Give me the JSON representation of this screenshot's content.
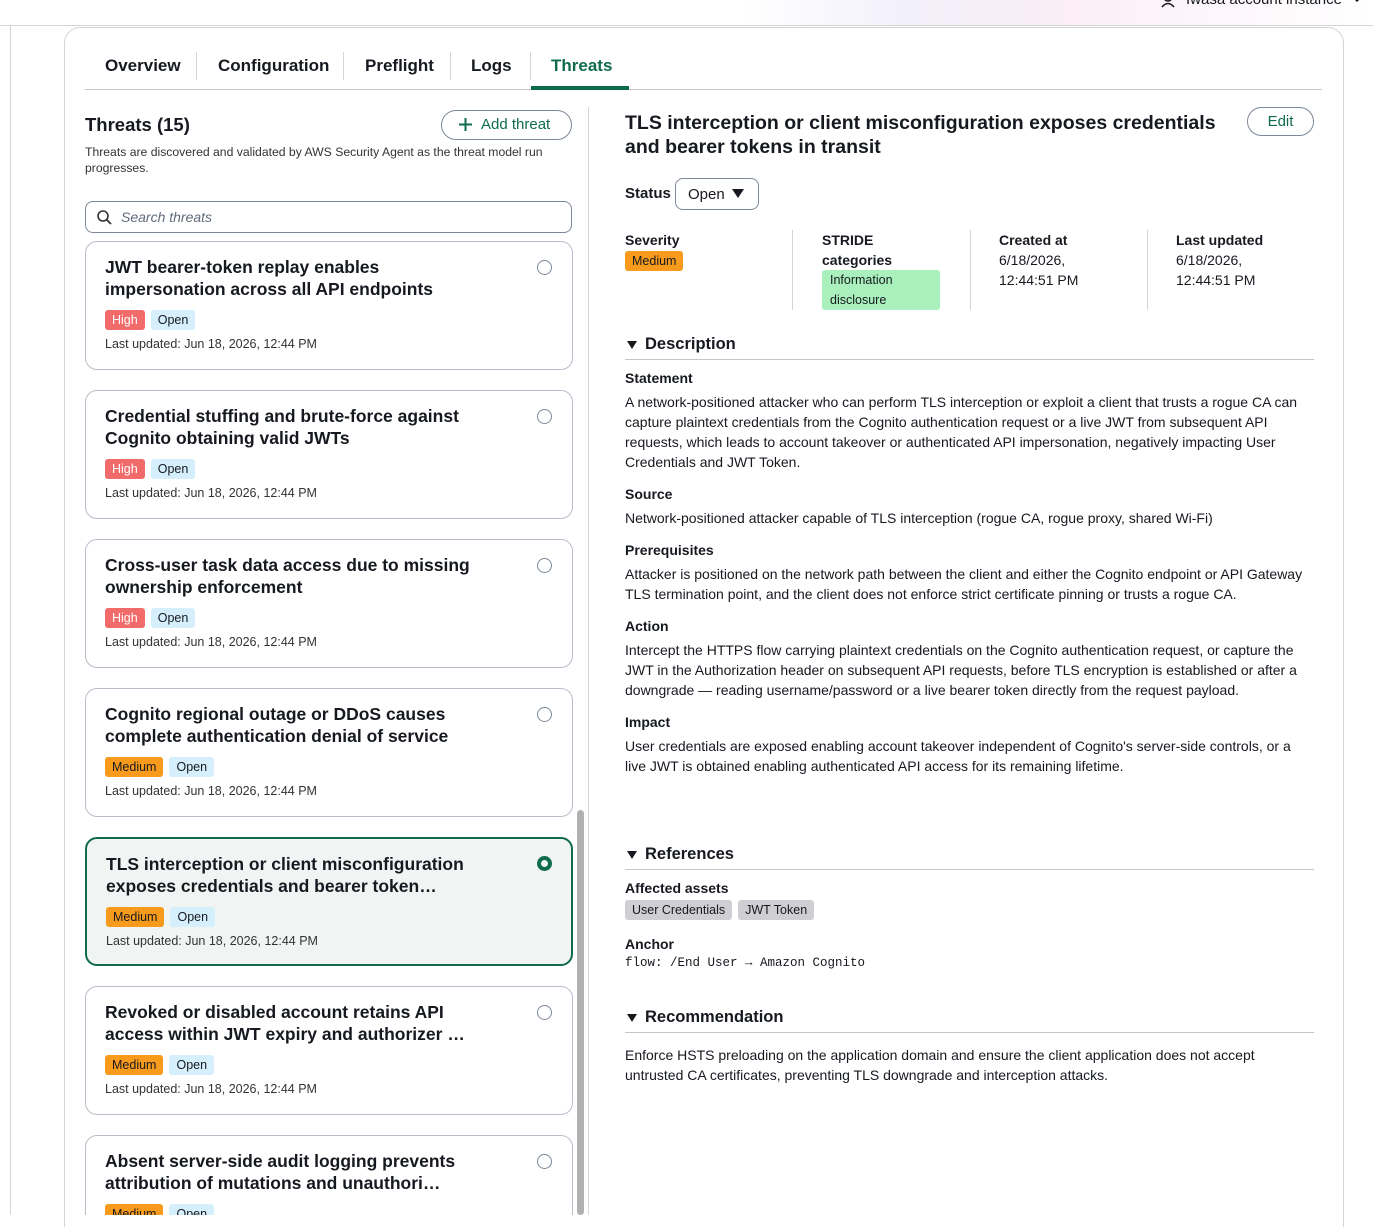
{
  "top_bar": {
    "account": "Iwasa account instance"
  },
  "tabs": [
    "Overview",
    "Configuration",
    "Preflight",
    "Logs",
    "Threats"
  ],
  "threats_panel": {
    "title": "Threats (15)",
    "add_button": "Add threat",
    "description": "Threats are discovered and validated by AWS Security Agent as the threat model run progresses.",
    "search_placeholder": "Search threats",
    "threats": [
      {
        "title": "JWT bearer-token replay enables impersonation across all API endpoints",
        "severity": "High",
        "status": "Open",
        "last_updated": "Last updated: Jun 18, 2026, 12:44 PM"
      },
      {
        "title": "Credential stuffing and brute-force against Cognito obtaining valid JWTs",
        "severity": "High",
        "status": "Open",
        "last_updated": "Last updated: Jun 18, 2026, 12:44 PM"
      },
      {
        "title": "Cross-user task data access due to missing ownership enforcement",
        "severity": "High",
        "status": "Open",
        "last_updated": "Last updated: Jun 18, 2026, 12:44 PM"
      },
      {
        "title": "Cognito regional outage or DDoS causes complete authentication denial of service",
        "severity": "Medium",
        "status": "Open",
        "last_updated": "Last updated: Jun 18, 2026, 12:44 PM"
      },
      {
        "title": "TLS interception or client misconfiguration exposes credentials and bearer token…",
        "severity": "Medium",
        "status": "Open",
        "last_updated": "Last updated: Jun 18, 2026, 12:44 PM"
      },
      {
        "title": "Revoked or disabled account retains API access within JWT expiry and authorizer …",
        "severity": "Medium",
        "status": "Open",
        "last_updated": "Last updated: Jun 18, 2026, 12:44 PM"
      },
      {
        "title": "Absent server-side audit logging prevents attribution of mutations and unauthori…",
        "severity": "Medium",
        "status": "Open"
      }
    ]
  },
  "detail": {
    "title": "TLS interception or client misconfiguration exposes credentials and bearer tokens in transit",
    "edit_button": "Edit",
    "status_label": "Status",
    "status_value": "Open",
    "metadata": [
      {
        "label": "Severity",
        "value": "Medium"
      },
      {
        "label": "STRIDE categories",
        "value": "Information disclosure"
      },
      {
        "label": "Created at",
        "value": "6/18/2026, 12:44:51 PM"
      },
      {
        "label": "Last updated",
        "value": "6/18/2026, 12:44:51 PM"
      }
    ],
    "description": {
      "heading": "Description",
      "fields": [
        {
          "label": "Statement",
          "text": "A network-positioned attacker who can perform TLS interception or exploit a client that trusts a rogue CA can capture plaintext credentials from the Cognito authentication request or a live JWT from subsequent API requests, which leads to account takeover or authenticated API impersonation, negatively impacting User Credentials and JWT Token."
        },
        {
          "label": "Source",
          "text": "Network-positioned attacker capable of TLS interception (rogue CA, rogue proxy, shared Wi-Fi)"
        },
        {
          "label": "Prerequisites",
          "text": "Attacker is positioned on the network path between the client and either the Cognito endpoint or API Gateway TLS termination point, and the client does not enforce strict certificate pinning or trusts a rogue CA."
        },
        {
          "label": "Action",
          "text": "Intercept the HTTPS flow carrying plaintext credentials on the Cognito authentication request, or capture the JWT in the Authorization header on subsequent API requests, before TLS encryption is established or after a downgrade — reading username/password or a live bearer token directly from the request payload."
        },
        {
          "label": "Impact",
          "text": "User credentials are exposed enabling account takeover independent of Cognito's server-side controls, or a live JWT is obtained enabling authenticated API access for its remaining lifetime."
        }
      ]
    },
    "references": {
      "heading": "References",
      "assets_label": "Affected assets",
      "assets": [
        "User Credentials",
        "JWT Token"
      ],
      "anchor_label": "Anchor",
      "anchor": "flow: /End User → Amazon Cognito"
    },
    "recommendation": {
      "heading": "Recommendation",
      "text": "Enforce HSTS preloading on the application domain and ensure the client application does not accept untrusted CA certificates, preventing TLS downgrade and interception attacks."
    }
  }
}
